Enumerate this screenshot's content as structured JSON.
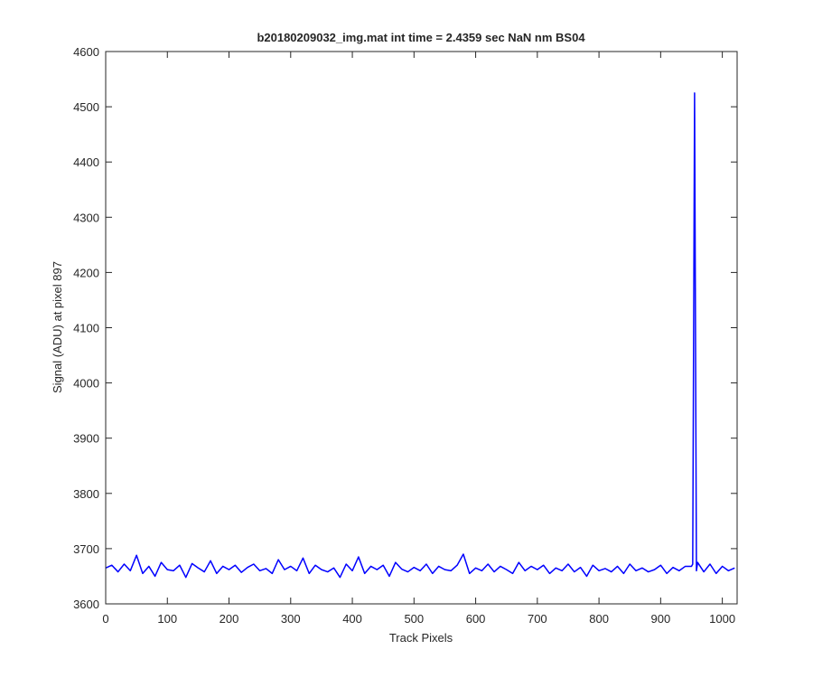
{
  "chart_data": {
    "type": "line",
    "title": "b20180209032_img.mat int time = 2.4359 sec  NaN nm BS04",
    "xlabel": "Track Pixels",
    "ylabel": "Signal (ADU) at pixel 897",
    "x": [
      0,
      10,
      20,
      30,
      40,
      50,
      60,
      70,
      80,
      90,
      100,
      110,
      120,
      130,
      140,
      150,
      160,
      170,
      180,
      190,
      200,
      210,
      220,
      230,
      240,
      250,
      260,
      270,
      280,
      290,
      300,
      310,
      320,
      330,
      340,
      350,
      360,
      370,
      380,
      390,
      400,
      410,
      420,
      430,
      440,
      450,
      460,
      470,
      480,
      490,
      500,
      510,
      520,
      530,
      540,
      550,
      560,
      570,
      580,
      590,
      600,
      610,
      620,
      630,
      640,
      650,
      660,
      670,
      680,
      690,
      700,
      710,
      720,
      730,
      740,
      750,
      760,
      770,
      780,
      790,
      800,
      810,
      820,
      830,
      840,
      850,
      860,
      870,
      880,
      890,
      900,
      910,
      920,
      930,
      940,
      950,
      952,
      955,
      958,
      960,
      970,
      980,
      990,
      1000,
      1010,
      1020
    ],
    "values": [
      3665,
      3670,
      3658,
      3672,
      3660,
      3688,
      3655,
      3668,
      3650,
      3675,
      3662,
      3660,
      3670,
      3648,
      3673,
      3665,
      3658,
      3678,
      3655,
      3668,
      3662,
      3670,
      3657,
      3666,
      3672,
      3660,
      3664,
      3655,
      3680,
      3662,
      3668,
      3660,
      3683,
      3655,
      3670,
      3662,
      3658,
      3665,
      3648,
      3672,
      3660,
      3685,
      3655,
      3668,
      3662,
      3670,
      3650,
      3675,
      3663,
      3658,
      3666,
      3660,
      3672,
      3655,
      3668,
      3662,
      3660,
      3670,
      3690,
      3655,
      3665,
      3660,
      3672,
      3658,
      3668,
      3662,
      3655,
      3675,
      3660,
      3668,
      3662,
      3670,
      3655,
      3665,
      3660,
      3672,
      3658,
      3666,
      3650,
      3670,
      3660,
      3664,
      3658,
      3668,
      3655,
      3672,
      3660,
      3665,
      3658,
      3662,
      3670,
      3655,
      3666,
      3660,
      3668,
      3668,
      3672,
      4525,
      3660,
      3675,
      3658,
      3672,
      3655,
      3668,
      3660,
      3665
    ],
    "color": "#0000ff",
    "xlim": [
      0,
      1024
    ],
    "ylim": [
      3600,
      4600
    ],
    "xticks": [
      0,
      100,
      200,
      300,
      400,
      500,
      600,
      700,
      800,
      900,
      1000
    ],
    "yticks": [
      3600,
      3700,
      3800,
      3900,
      4000,
      4100,
      4200,
      4300,
      4400,
      4500,
      4600
    ]
  }
}
